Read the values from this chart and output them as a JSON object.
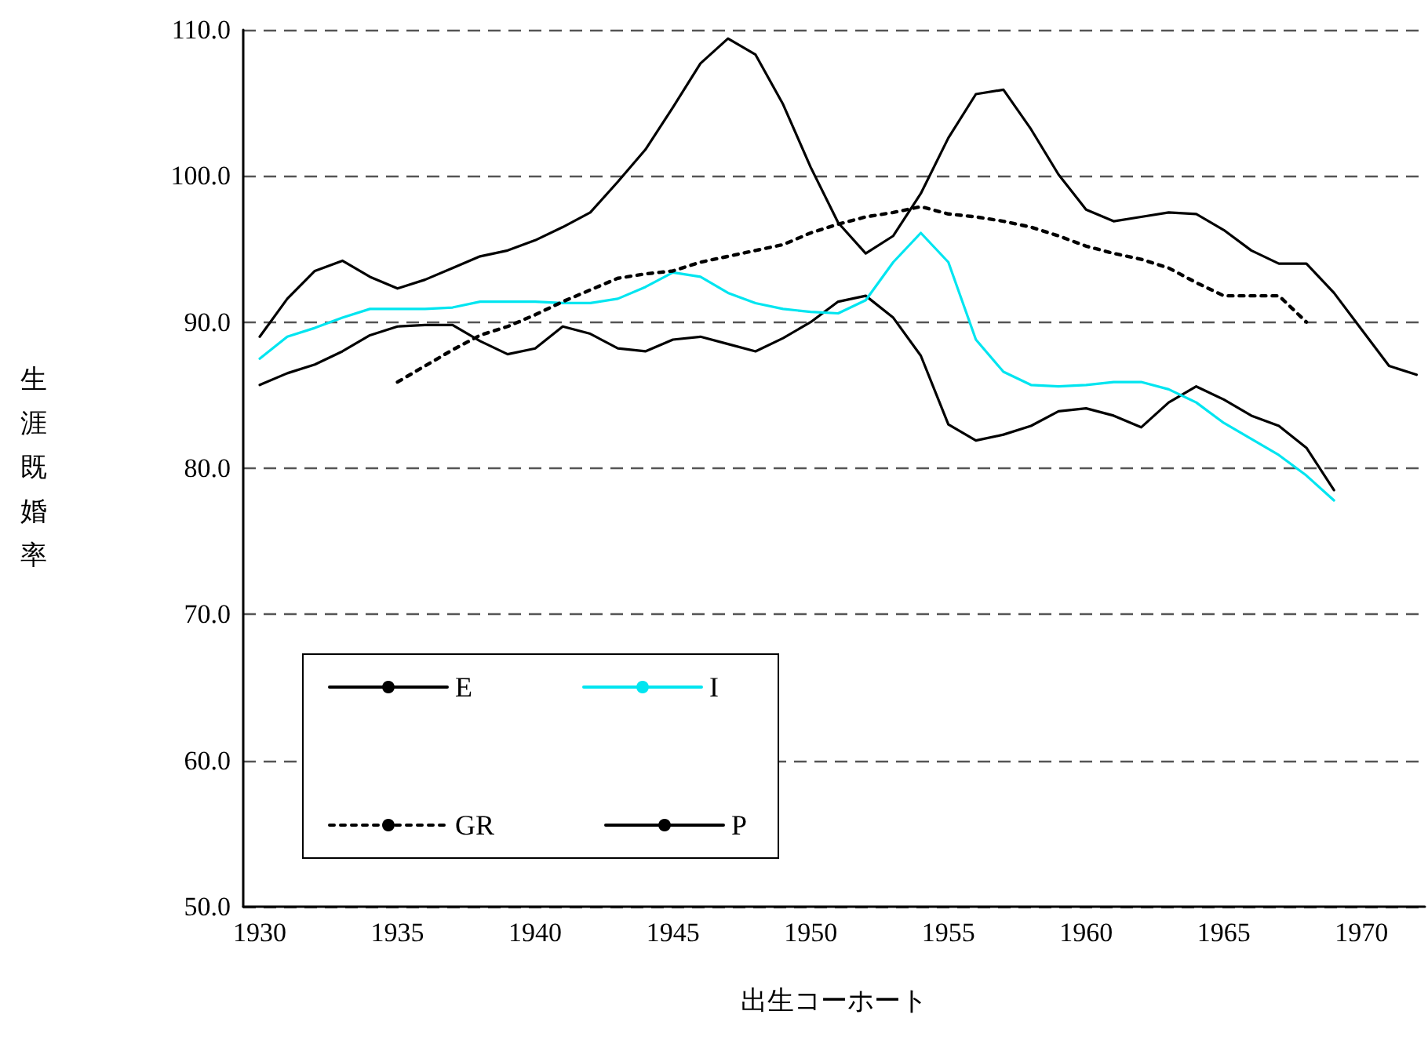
{
  "chart_data": {
    "type": "line",
    "xlabel": "出生コーホート",
    "ylabel": "生涯既婚率",
    "xlim": [
      1929.4,
      1972.3
    ],
    "xticks": [
      1930,
      1935,
      1940,
      1945,
      1950,
      1955,
      1960,
      1965,
      1970
    ],
    "ylim": [
      50,
      110
    ],
    "yticks": [
      {
        "value": 50,
        "label": "50.0"
      },
      {
        "value": 60,
        "label": "60.0"
      },
      {
        "value": 70,
        "label": "70.0"
      },
      {
        "value": 80,
        "label": "80.0"
      },
      {
        "value": 90,
        "label": "90.0"
      },
      {
        "value": 100,
        "label": "100.0"
      },
      {
        "value": 110,
        "label": "110.0"
      }
    ],
    "grid": "y",
    "legend": "bottom left",
    "marker": "none",
    "series": [
      {
        "name": "E",
        "color": "#000000",
        "line_style": "solid",
        "x": [
          1930,
          1931,
          1932,
          1933,
          1934,
          1935,
          1936,
          1937,
          1938,
          1939,
          1940,
          1941,
          1942,
          1943,
          1944,
          1945,
          1946,
          1947,
          1948,
          1949,
          1950,
          1951,
          1952,
          1953,
          1954,
          1955,
          1956,
          1957,
          1958,
          1959,
          1960,
          1961,
          1962,
          1963,
          1964,
          1965,
          1966,
          1967,
          1968,
          1969
        ],
        "values": [
          85.7,
          86.5,
          87.1,
          88.0,
          89.1,
          89.7,
          89.8,
          89.8,
          88.7,
          87.8,
          88.2,
          89.7,
          89.2,
          88.2,
          88.0,
          88.8,
          89.0,
          88.5,
          88.0,
          88.9,
          90.0,
          91.4,
          91.8,
          90.3,
          87.7,
          83.0,
          81.9,
          82.3,
          82.9,
          83.9,
          84.1,
          83.6,
          82.8,
          84.5,
          85.6,
          84.7,
          83.6,
          82.9,
          81.4,
          78.5
        ]
      },
      {
        "name": "I",
        "color": "#00e5f0",
        "line_style": "solid",
        "x": [
          1930,
          1931,
          1932,
          1933,
          1934,
          1935,
          1936,
          1937,
          1938,
          1939,
          1940,
          1941,
          1942,
          1943,
          1944,
          1945,
          1946,
          1947,
          1948,
          1949,
          1950,
          1951,
          1952,
          1953,
          1954,
          1955,
          1956,
          1957,
          1958,
          1959,
          1960,
          1961,
          1962,
          1963,
          1964,
          1965,
          1966,
          1967,
          1968,
          1969
        ],
        "values": [
          87.5,
          89.0,
          89.6,
          90.3,
          90.9,
          90.9,
          90.9,
          91.0,
          91.4,
          91.4,
          91.4,
          91.3,
          91.3,
          91.6,
          92.4,
          93.4,
          93.1,
          92.0,
          91.3,
          90.9,
          90.7,
          90.6,
          91.5,
          94.1,
          96.1,
          94.1,
          88.8,
          86.6,
          85.7,
          85.6,
          85.7,
          85.9,
          85.9,
          85.4,
          84.5,
          83.1,
          82.0,
          80.9,
          79.5,
          77.8
        ]
      },
      {
        "name": "GR",
        "color": "#000000",
        "line_style": "dotted",
        "x": [
          1935,
          1936,
          1937,
          1938,
          1939,
          1940,
          1941,
          1942,
          1943,
          1944,
          1945,
          1946,
          1947,
          1948,
          1949,
          1950,
          1951,
          1952,
          1953,
          1954,
          1955,
          1956,
          1957,
          1958,
          1959,
          1960,
          1961,
          1962,
          1963,
          1964,
          1965,
          1966,
          1967,
          1968
        ],
        "values": [
          85.9,
          87.0,
          88.1,
          89.1,
          89.7,
          90.5,
          91.4,
          92.2,
          93.0,
          93.3,
          93.5,
          94.1,
          94.5,
          94.9,
          95.3,
          96.1,
          96.7,
          97.2,
          97.5,
          97.9,
          97.4,
          97.2,
          96.9,
          96.5,
          95.9,
          95.2,
          94.7,
          94.3,
          93.7,
          92.7,
          91.8,
          91.8,
          91.8,
          90.0
        ]
      },
      {
        "name": "P",
        "color": "#000000",
        "line_style": "solid",
        "x": [
          1930,
          1931,
          1932,
          1933,
          1934,
          1935,
          1936,
          1937,
          1938,
          1939,
          1940,
          1941,
          1942,
          1943,
          1944,
          1945,
          1946,
          1947,
          1948,
          1949,
          1950,
          1951,
          1952,
          1953,
          1954,
          1955,
          1956,
          1957,
          1958,
          1959,
          1960,
          1961,
          1962,
          1963,
          1964,
          1965,
          1966,
          1967,
          1968,
          1969,
          1970,
          1971,
          1972
        ],
        "values": [
          89.0,
          91.6,
          93.5,
          94.2,
          93.1,
          92.3,
          92.9,
          93.7,
          94.5,
          94.9,
          95.6,
          96.5,
          97.5,
          99.6,
          101.8,
          104.7,
          107.7,
          109.4,
          108.3,
          104.9,
          100.6,
          96.8,
          94.7,
          95.9,
          98.8,
          102.6,
          105.6,
          105.9,
          103.2,
          100.1,
          97.7,
          96.9,
          97.2,
          97.5,
          97.4,
          96.3,
          94.9,
          94.0,
          94.0,
          92.0,
          89.5,
          87.0,
          86.4
        ]
      }
    ]
  }
}
